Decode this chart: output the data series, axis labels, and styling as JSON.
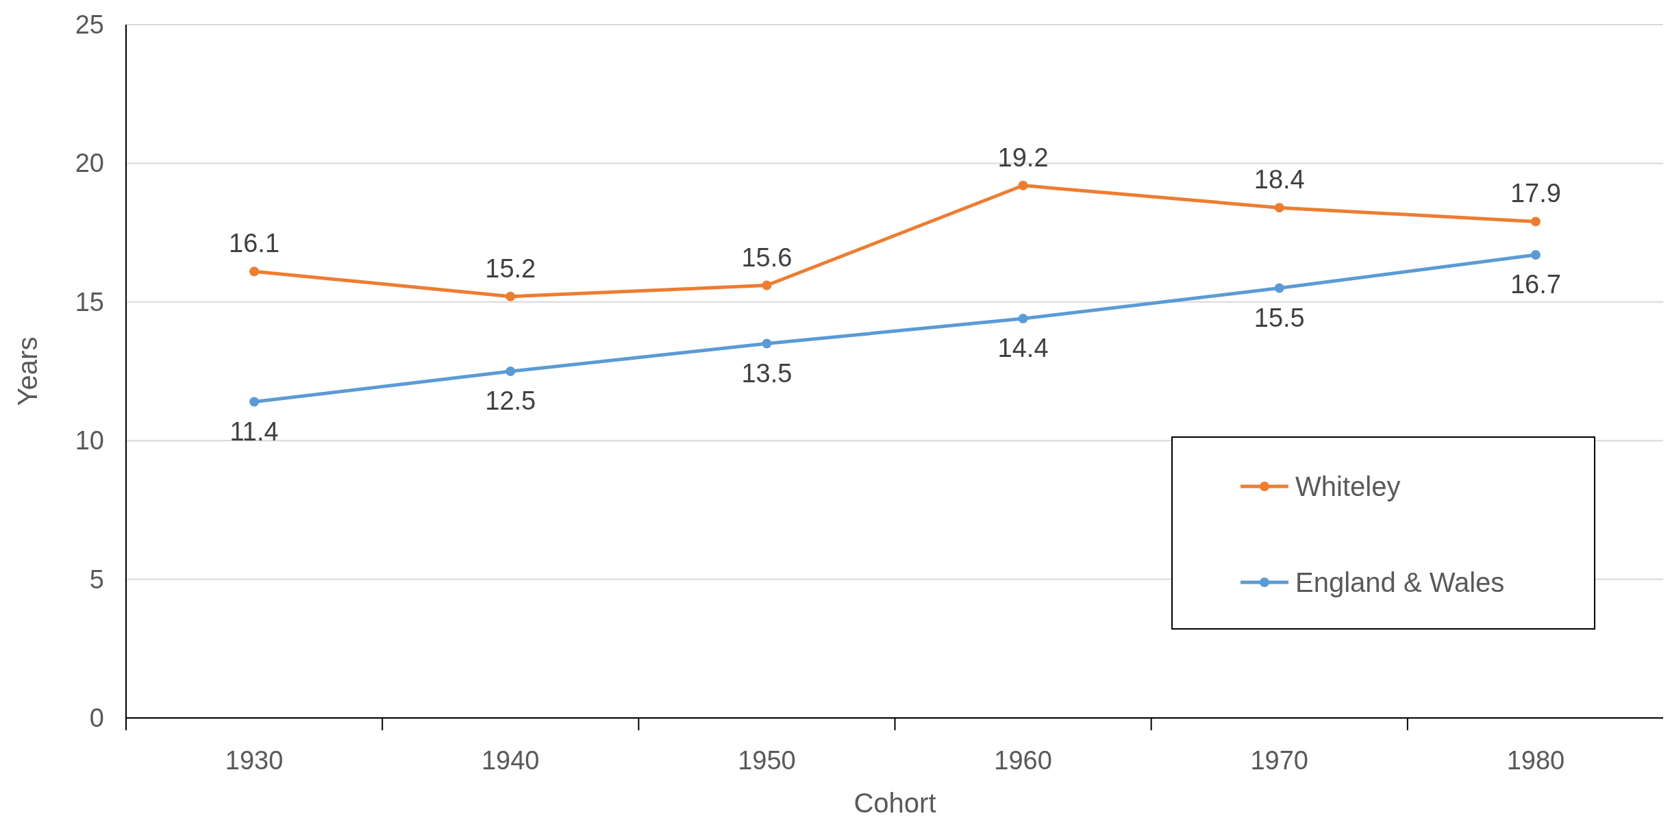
{
  "chart_data": {
    "type": "line",
    "xlabel": "Cohort",
    "ylabel": "Years",
    "categories": [
      "1930",
      "1940",
      "1950",
      "1960",
      "1970",
      "1980"
    ],
    "series": [
      {
        "name": "Whiteley",
        "color": "#ed7d31",
        "values": [
          16.1,
          15.2,
          15.6,
          19.2,
          18.4,
          17.9
        ]
      },
      {
        "name": "England & Wales",
        "color": "#5b9bd5",
        "values": [
          11.4,
          12.5,
          13.5,
          14.4,
          15.5,
          16.7
        ]
      }
    ],
    "ylim": [
      0,
      25
    ],
    "yticks": [
      0,
      5,
      10,
      15,
      20,
      25
    ],
    "grid": "y",
    "legend": "bottom right",
    "marker": "circle",
    "line_style": "solid",
    "data_labels": true
  }
}
